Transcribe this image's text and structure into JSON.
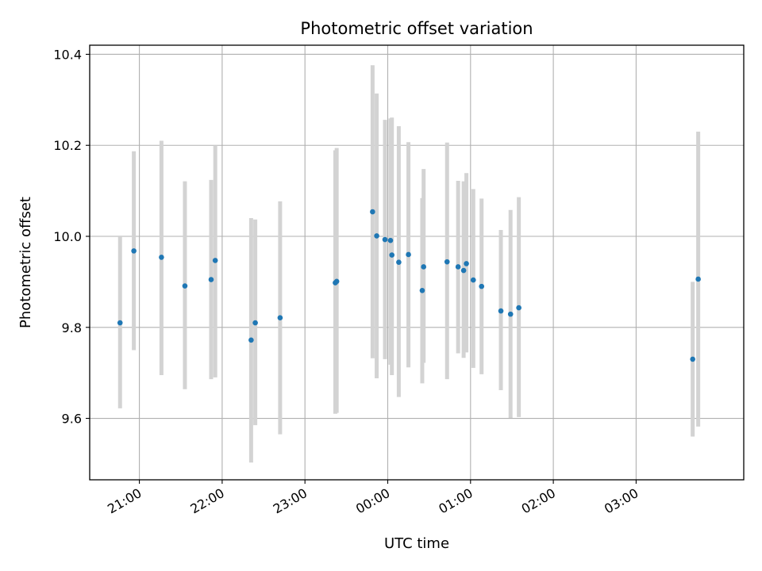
{
  "chart_data": {
    "type": "scatter",
    "title": "Photometric offset variation",
    "xlabel": "UTC time",
    "ylabel": "Photometric offset",
    "x_axis_kind": "time",
    "xlim": [
      "20:24",
      "04:18"
    ],
    "ylim": [
      9.465,
      10.42
    ],
    "grid": true,
    "yticks": [
      9.6,
      9.8,
      10.0,
      10.2,
      10.4
    ],
    "ytick_labels": [
      "9.6",
      "9.8",
      "10.0",
      "10.2",
      "10.4"
    ],
    "xticks": [
      "21:00",
      "22:00",
      "23:00",
      "00:00",
      "01:00",
      "02:00",
      "03:00"
    ],
    "xtick_labels": [
      "21:00",
      "22:00",
      "23:00",
      "00:00",
      "01:00",
      "02:00",
      "03:00"
    ],
    "point_color": "#1f77b4",
    "errorbar_color": "#d3d3d3",
    "points": [
      {
        "x": "20:46",
        "y": 9.81,
        "ylow": 9.622,
        "yhigh": 10.0
      },
      {
        "x": "20:56",
        "y": 9.968,
        "ylow": 9.75,
        "yhigh": 10.187
      },
      {
        "x": "21:16",
        "y": 9.954,
        "ylow": 9.695,
        "yhigh": 10.21
      },
      {
        "x": "21:33",
        "y": 9.891,
        "ylow": 9.664,
        "yhigh": 10.121
      },
      {
        "x": "21:52",
        "y": 9.905,
        "ylow": 9.686,
        "yhigh": 10.124
      },
      {
        "x": "21:55",
        "y": 9.947,
        "ylow": 9.69,
        "yhigh": 10.2
      },
      {
        "x": "22:21",
        "y": 9.772,
        "ylow": 9.503,
        "yhigh": 10.04
      },
      {
        "x": "22:24",
        "y": 9.81,
        "ylow": 9.585,
        "yhigh": 10.037
      },
      {
        "x": "22:42",
        "y": 9.821,
        "ylow": 9.565,
        "yhigh": 10.077
      },
      {
        "x": "23:22",
        "y": 9.898,
        "ylow": 9.61,
        "yhigh": 10.189
      },
      {
        "x": "23:23",
        "y": 9.901,
        "ylow": 9.612,
        "yhigh": 10.194
      },
      {
        "x": "23:49",
        "y": 10.054,
        "ylow": 9.732,
        "yhigh": 10.376
      },
      {
        "x": "23:52",
        "y": 10.001,
        "ylow": 9.688,
        "yhigh": 10.314
      },
      {
        "x": "23:58",
        "y": 9.993,
        "ylow": 9.73,
        "yhigh": 10.256
      },
      {
        "x": "00:02",
        "y": 9.991,
        "ylow": 9.718,
        "yhigh": 10.259
      },
      {
        "x": "00:03",
        "y": 9.959,
        "ylow": 9.695,
        "yhigh": 10.261
      },
      {
        "x": "00:08",
        "y": 9.943,
        "ylow": 9.647,
        "yhigh": 10.242
      },
      {
        "x": "00:15",
        "y": 9.96,
        "ylow": 9.712,
        "yhigh": 10.207
      },
      {
        "x": "00:25",
        "y": 9.881,
        "ylow": 9.677,
        "yhigh": 10.084
      },
      {
        "x": "00:26",
        "y": 9.933,
        "ylow": 9.722,
        "yhigh": 10.148
      },
      {
        "x": "00:43",
        "y": 9.944,
        "ylow": 9.686,
        "yhigh": 10.206
      },
      {
        "x": "00:51",
        "y": 9.933,
        "ylow": 9.743,
        "yhigh": 10.122
      },
      {
        "x": "00:55",
        "y": 9.925,
        "ylow": 9.733,
        "yhigh": 10.121
      },
      {
        "x": "00:57",
        "y": 9.94,
        "ylow": 9.745,
        "yhigh": 10.139
      },
      {
        "x": "01:02",
        "y": 9.904,
        "ylow": 9.711,
        "yhigh": 10.104
      },
      {
        "x": "01:08",
        "y": 9.89,
        "ylow": 9.697,
        "yhigh": 10.083
      },
      {
        "x": "01:22",
        "y": 9.836,
        "ylow": 9.662,
        "yhigh": 10.014
      },
      {
        "x": "01:29",
        "y": 9.829,
        "ylow": 9.601,
        "yhigh": 10.058
      },
      {
        "x": "01:35",
        "y": 9.843,
        "ylow": 9.603,
        "yhigh": 10.086
      },
      {
        "x": "03:41",
        "y": 9.73,
        "ylow": 9.56,
        "yhigh": 9.9
      },
      {
        "x": "03:45",
        "y": 9.906,
        "ylow": 9.582,
        "yhigh": 10.23
      }
    ]
  }
}
